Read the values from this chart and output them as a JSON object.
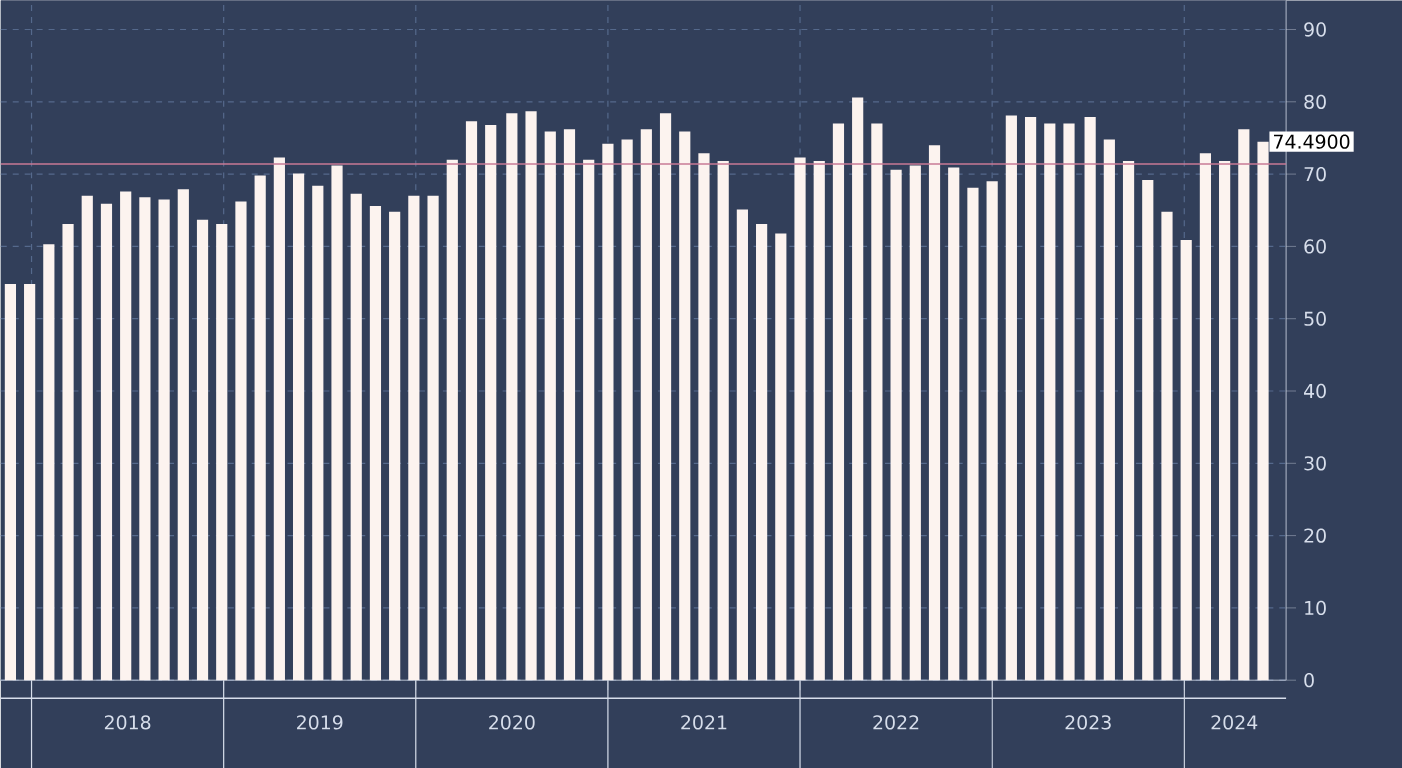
{
  "chart_data": {
    "type": "bar",
    "color": "#fcf3ef",
    "x": [
      2017.89,
      2017.99,
      2018.09,
      2018.19,
      2018.29,
      2018.39,
      2018.49,
      2018.59,
      2018.69,
      2018.79,
      2018.89,
      2018.99,
      2019.09,
      2019.19,
      2019.29,
      2019.39,
      2019.49,
      2019.59,
      2019.69,
      2019.79,
      2019.89,
      2019.99,
      2020.09,
      2020.19,
      2020.29,
      2020.39,
      2020.5,
      2020.6,
      2020.7,
      2020.8,
      2020.9,
      2021.0,
      2021.1,
      2021.2,
      2021.3,
      2021.4,
      2021.5,
      2021.6,
      2021.7,
      2021.8,
      2021.9,
      2022.0,
      2022.1,
      2022.2,
      2022.3,
      2022.4,
      2022.5,
      2022.6,
      2022.7,
      2022.8,
      2022.9,
      2023.0,
      2023.1,
      2023.2,
      2023.3,
      2023.4,
      2023.51,
      2023.61,
      2023.71,
      2023.81,
      2023.91,
      2024.01,
      2024.11,
      2024.21,
      2024.31,
      2024.41
    ],
    "values": [
      54.8,
      54.8,
      60.3,
      63.1,
      67.0,
      65.9,
      67.6,
      66.8,
      66.5,
      67.9,
      63.7,
      63.1,
      66.2,
      69.8,
      72.3,
      70.1,
      68.4,
      71.2,
      67.3,
      65.6,
      64.8,
      67.0,
      67.0,
      72.0,
      77.3,
      76.8,
      78.4,
      78.7,
      75.9,
      76.2,
      72.0,
      74.2,
      74.8,
      76.2,
      78.4,
      75.9,
      72.9,
      71.8,
      65.1,
      63.1,
      61.8,
      72.3,
      71.8,
      77.0,
      80.6,
      77.0,
      70.6,
      71.2,
      74.0,
      70.9,
      68.1,
      69.0,
      78.1,
      77.9,
      77.0,
      77.0,
      77.9,
      74.8,
      71.8,
      69.2,
      64.8,
      60.9,
      72.9,
      71.8,
      76.2,
      74.49
    ],
    "annotations": [
      {
        "text": "74.4900",
        "x": 2024.41,
        "y": 74.49
      }
    ],
    "xlim": [
      2017.84,
      2024.53
    ],
    "xticks": [
      {
        "value": 2018,
        "label": null
      },
      {
        "value": 2019,
        "label": null
      },
      {
        "value": 2020,
        "label": null
      },
      {
        "value": 2021,
        "label": null
      },
      {
        "value": 2022,
        "label": null
      },
      {
        "value": 2023,
        "label": null
      },
      {
        "value": 2024,
        "label": null
      },
      {
        "value": 2018.5,
        "label": "2018"
      },
      {
        "value": 2019.5,
        "label": "2019"
      },
      {
        "value": 2020.5,
        "label": "2020"
      },
      {
        "value": 2021.5,
        "label": "2021"
      },
      {
        "value": 2022.5,
        "label": "2022"
      },
      {
        "value": 2023.5,
        "label": "2023"
      },
      {
        "value": 2024.26,
        "label": "2024"
      }
    ],
    "ylim": [
      0,
      94
    ],
    "yticks": [
      0,
      10,
      20,
      30,
      40,
      50,
      60,
      70,
      80,
      90
    ],
    "grid": true,
    "ref_lines": [
      {
        "axis": "y",
        "value": 71.4,
        "color": "#c87a96"
      }
    ]
  }
}
